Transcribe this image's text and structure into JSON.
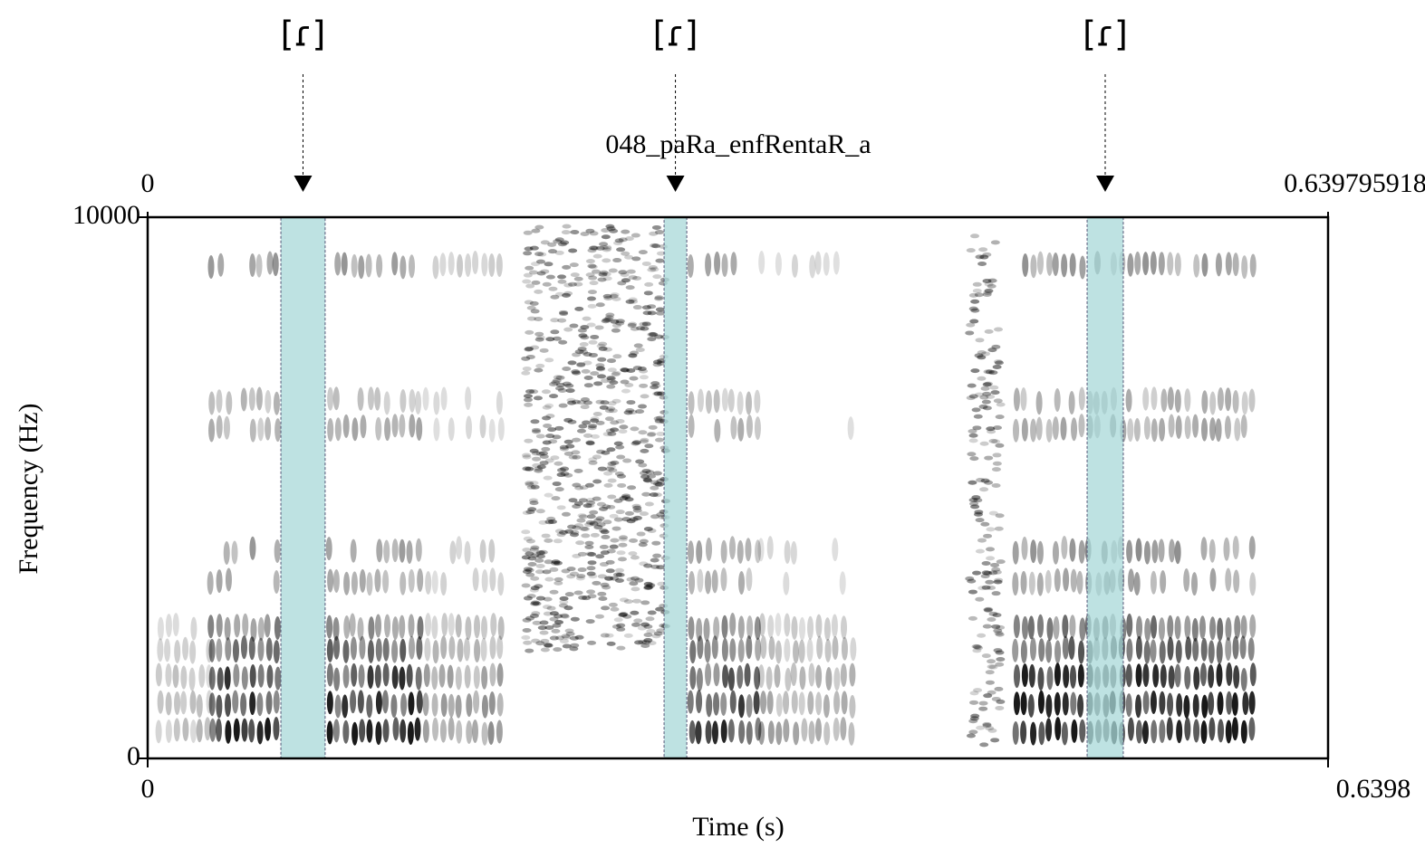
{
  "chart_data": {
    "type": "spectrogram",
    "title": "048_paRa_enfRentaR_a",
    "x_label": "Time (s)",
    "y_label": "Frequency (Hz)",
    "xlim": [
      0,
      0.639795918
    ],
    "ylim": [
      0,
      10000
    ],
    "xticks_top": [
      0,
      0.639795918
    ],
    "xticks": [
      0,
      {
        "value": 0.639795918,
        "label": "0.6398"
      }
    ],
    "yticks": [
      0,
      10000
    ],
    "highlight_color": "#a8d8d8",
    "highlights": [
      {
        "label": "[ɾ]",
        "start": 0.0722,
        "end": 0.0962
      },
      {
        "label": "[ɾ]",
        "start": 0.2799,
        "end": 0.2922
      },
      {
        "label": "[ɾ]",
        "start": 0.5092,
        "end": 0.5288
      }
    ]
  }
}
